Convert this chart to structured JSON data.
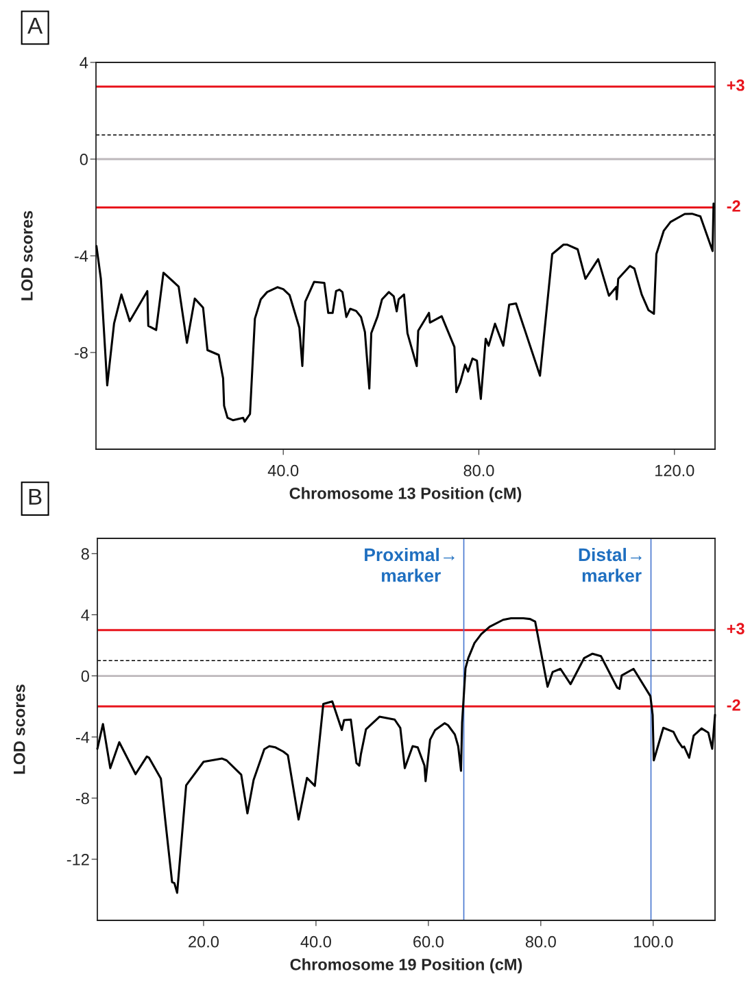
{
  "chart_data": [
    {
      "type": "line",
      "title": "A",
      "xlabel": "Chromosome 13 Position (cM)",
      "ylabel": "LOD scores",
      "xlim": [
        1.7,
        128.3
      ],
      "ylim": [
        -12,
        4
      ],
      "xticks": [
        {
          "value": 40,
          "label": "40.0"
        },
        {
          "value": 80,
          "label": "80.0"
        },
        {
          "value": 120,
          "label": "120.0"
        }
      ],
      "yticks": [
        4,
        0,
        -4,
        -8
      ],
      "grid": false,
      "legend": false,
      "marker": "none",
      "line_style": "solid",
      "series": [
        {
          "color": "#000000",
          "x": [
            1.8,
            2.7,
            4.0,
            5.4,
            6.9,
            8.6,
            12.2,
            12.4,
            14.0,
            15.5,
            18.6,
            20.3,
            21.9,
            23.6,
            24.5,
            26.8,
            27.7,
            27.9,
            28.6,
            29.7,
            31.8,
            32.1,
            33.2,
            34.2,
            35.4,
            36.7,
            38.8,
            40.0,
            41.3,
            43.3,
            43.9,
            44.5,
            46.3,
            48.4,
            49.2,
            50.1,
            50.8,
            51.5,
            52.1,
            52.9,
            53.7,
            54.9,
            55.9,
            56.7,
            57.6,
            58.0,
            59.3,
            60.2,
            61.6,
            62.6,
            63.2,
            63.6,
            64.7,
            65.4,
            67.3,
            67.6,
            69.8,
            70.0,
            72.4,
            75.0,
            75.4,
            76.2,
            77.2,
            77.8,
            78.7,
            79.6,
            80.4,
            81.4,
            82.0,
            83.3,
            85.0,
            86.2,
            87.6,
            92.5,
            95.0,
            97.3,
            98.1,
            100.2,
            101.8,
            104.4,
            106.6,
            108.1,
            108.2,
            108.5,
            110.9,
            111.8,
            113.3,
            114.7,
            115.8,
            116.3,
            117.8,
            119.2,
            122.1,
            123.6,
            125.3,
            127.8,
            128.0
          ],
          "values": [
            -3.6,
            -4.95,
            -9.36,
            -6.8,
            -5.6,
            -6.7,
            -5.46,
            -6.9,
            -7.07,
            -4.7,
            -5.27,
            -7.6,
            -5.77,
            -6.14,
            -7.9,
            -8.1,
            -9.07,
            -10.2,
            -10.7,
            -10.8,
            -10.7,
            -10.86,
            -10.54,
            -6.6,
            -5.8,
            -5.5,
            -5.3,
            -5.38,
            -5.63,
            -6.98,
            -8.56,
            -5.9,
            -5.08,
            -5.12,
            -6.36,
            -6.36,
            -5.46,
            -5.4,
            -5.5,
            -6.53,
            -6.19,
            -6.28,
            -6.53,
            -7.15,
            -9.49,
            -7.2,
            -6.5,
            -5.8,
            -5.5,
            -5.68,
            -6.3,
            -5.8,
            -5.6,
            -7.2,
            -8.56,
            -7.1,
            -6.36,
            -6.76,
            -6.5,
            -7.77,
            -9.64,
            -9.24,
            -8.5,
            -8.79,
            -8.25,
            -8.34,
            -9.92,
            -7.43,
            -7.72,
            -6.81,
            -7.72,
            -6.02,
            -5.97,
            -8.96,
            -3.93,
            -3.54,
            -3.54,
            -3.73,
            -4.95,
            -4.14,
            -5.65,
            -5.29,
            -5.8,
            -4.95,
            -4.42,
            -4.53,
            -5.6,
            -6.25,
            -6.4,
            -3.93,
            -2.97,
            -2.6,
            -2.27,
            -2.26,
            -2.37,
            -3.8,
            -1.84
          ]
        }
      ],
      "ref_lines": [
        {
          "axis": "y",
          "value": 3,
          "label": "+3",
          "color": "#e8141c",
          "line_style": "solid"
        },
        {
          "axis": "y",
          "value": 1,
          "color": "#000000",
          "line_style": "dashed"
        },
        {
          "axis": "y",
          "value": 0,
          "color": "#bdb8bb",
          "line_style": "solid"
        },
        {
          "axis": "y",
          "value": -2,
          "label": "-2",
          "color": "#e8141c",
          "line_style": "solid"
        }
      ]
    },
    {
      "type": "line",
      "title": "B",
      "xlabel": "Chromosome 19 Position (cM)",
      "ylabel": "LOD scores",
      "xlim": [
        1.1,
        111
      ],
      "ylim": [
        -16,
        9
      ],
      "xticks": [
        {
          "value": 20,
          "label": "20.0"
        },
        {
          "value": 40,
          "label": "40.0"
        },
        {
          "value": 60,
          "label": "60.0"
        },
        {
          "value": 80,
          "label": "80.0"
        },
        {
          "value": 100,
          "label": "100.0"
        }
      ],
      "yticks": [
        8,
        4,
        0,
        -4,
        -8,
        -12
      ],
      "grid": false,
      "legend": false,
      "marker": "none",
      "line_style": "solid",
      "series": [
        {
          "color": "#000000",
          "x": [
            1.1,
            2.1,
            3.4,
            5.0,
            7.9,
            9.9,
            10.3,
            12.4,
            13.2,
            14.4,
            14.8,
            15.3,
            16.9,
            20.0,
            23.3,
            24.1,
            26.7,
            27.8,
            28.9,
            30.8,
            31.7,
            32.8,
            34.2,
            35.0,
            36.9,
            38.4,
            39.8,
            41.3,
            42.9,
            44.6,
            45.0,
            46.2,
            47.2,
            47.7,
            48.0,
            48.9,
            51.3,
            54.0,
            55.0,
            55.8,
            57.2,
            58.1,
            59.3,
            59.5,
            60.3,
            61.2,
            62.9,
            63.5,
            64.7,
            65.3,
            65.8,
            66.0,
            66.6,
            67.1,
            68.2,
            69.4,
            70.9,
            73.3,
            74.7,
            76.9,
            78.1,
            79.0,
            81.2,
            82.1,
            83.5,
            85.3,
            87.7,
            89.2,
            90.7,
            93.6,
            94.0,
            94.4,
            96.5,
            99.5,
            99.9,
            100.1,
            101.8,
            103.6,
            104.4,
            105.2,
            105.5,
            106.4,
            107.2,
            108.6,
            109.8,
            110.5,
            111.0
          ],
          "values": [
            -4.77,
            -3.15,
            -6.04,
            -4.34,
            -6.43,
            -5.28,
            -5.36,
            -6.72,
            -9.5,
            -13.5,
            -13.56,
            -14.2,
            -7.16,
            -5.62,
            -5.41,
            -5.53,
            -6.47,
            -9.0,
            -6.81,
            -4.8,
            -4.6,
            -4.68,
            -4.96,
            -5.19,
            -9.4,
            -6.68,
            -7.2,
            -1.84,
            -1.67,
            -3.54,
            -2.89,
            -2.86,
            -5.7,
            -5.87,
            -5.11,
            -3.49,
            -2.67,
            -2.86,
            -3.4,
            -6.04,
            -4.6,
            -4.68,
            -5.87,
            -6.89,
            -4.18,
            -3.54,
            -3.1,
            -3.23,
            -3.83,
            -4.6,
            -6.21,
            -3.06,
            0.5,
            1.16,
            2.15,
            2.73,
            3.22,
            3.67,
            3.77,
            3.77,
            3.72,
            3.55,
            -0.71,
            0.25,
            0.46,
            -0.54,
            1.16,
            1.45,
            1.29,
            -0.77,
            -0.85,
            0.03,
            0.46,
            -1.33,
            -2.55,
            -5.53,
            -3.4,
            -3.66,
            -4.26,
            -4.68,
            -4.63,
            -5.36,
            -3.91,
            -3.44,
            -3.71,
            -4.77,
            -2.55
          ]
        }
      ],
      "ref_lines": [
        {
          "axis": "y",
          "value": 3,
          "label": "+3",
          "color": "#e8141c",
          "line_style": "solid"
        },
        {
          "axis": "y",
          "value": 1,
          "color": "#000000",
          "line_style": "dashed"
        },
        {
          "axis": "y",
          "value": 0,
          "color": "#bdb8bb",
          "line_style": "solid"
        },
        {
          "axis": "y",
          "value": -2,
          "label": "-2",
          "color": "#e8141c",
          "line_style": "solid"
        },
        {
          "axis": "x",
          "value": 66.3,
          "label": "Proximal→\nmarker",
          "color": "#4a78d0",
          "line_style": "solid"
        },
        {
          "axis": "x",
          "value": 99.6,
          "label": "Distal→\nmarker",
          "color": "#4a78d0",
          "line_style": "solid"
        }
      ]
    }
  ]
}
